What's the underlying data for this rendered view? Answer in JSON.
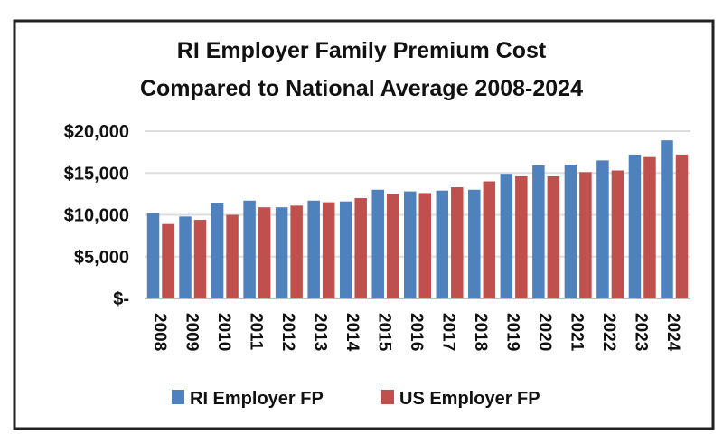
{
  "chart_data": {
    "type": "bar",
    "title": [
      "RI Employer Family Premium Cost",
      "Compared to National Average 2008-2024"
    ],
    "xlabel": "",
    "ylabel": "",
    "ylim": [
      0,
      20000
    ],
    "yticks": [
      0,
      5000,
      10000,
      15000,
      20000
    ],
    "ytick_labels": [
      "$-",
      "$5,000",
      "$10,000",
      "$15,000",
      "$20,000"
    ],
    "grid": true,
    "legend_position": "bottom",
    "categories": [
      "2008",
      "2009",
      "2010",
      "2011",
      "2012",
      "2013",
      "2014",
      "2015",
      "2016",
      "2017",
      "2018",
      "2019",
      "2020",
      "2021",
      "2022",
      "2023",
      "2024"
    ],
    "series": [
      {
        "name": "RI Employer FP",
        "color": "#4f81bd",
        "values": [
          10200,
          9800,
          11400,
          11700,
          10900,
          11700,
          11600,
          13000,
          12800,
          12900,
          13000,
          14900,
          15900,
          16000,
          16500,
          17200,
          18900
        ]
      },
      {
        "name": "US Employer FP",
        "color": "#c0504d",
        "values": [
          8900,
          9400,
          10000,
          10900,
          11100,
          11500,
          12000,
          12500,
          12600,
          13300,
          14000,
          14600,
          14600,
          15100,
          15300,
          16900,
          17200
        ]
      }
    ]
  }
}
